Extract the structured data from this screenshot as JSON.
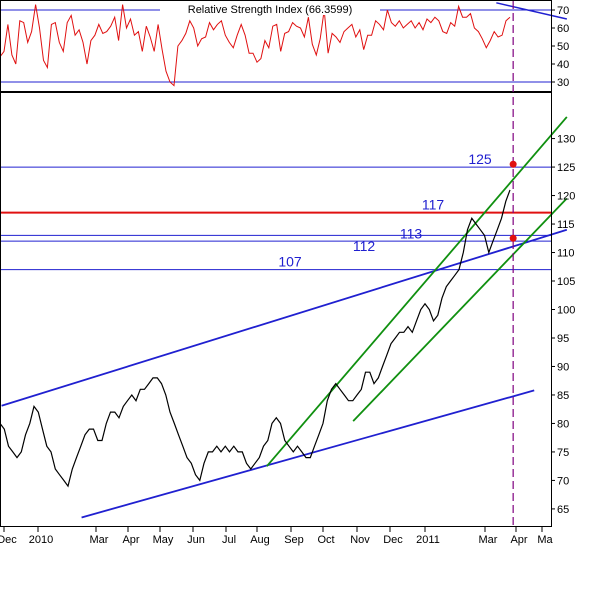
{
  "chart_data": [
    {
      "type": "line",
      "panel": "indicator",
      "title": "Relative Strength Index (66.3599)",
      "ylim": [
        25,
        75
      ],
      "y_ticks": [
        30,
        40,
        50,
        60,
        70
      ],
      "reference_lines": [
        30,
        70
      ],
      "series": [
        {
          "name": "",
          "color": "#e01010",
          "values": [
            44,
            47,
            62,
            45,
            40,
            64,
            63,
            52,
            58,
            73,
            60,
            42,
            38,
            62,
            63,
            52,
            47,
            63,
            67,
            56,
            59,
            52,
            40,
            53,
            56,
            62,
            57,
            58,
            61,
            66,
            53,
            73,
            60,
            65,
            56,
            58,
            47,
            61,
            55,
            47,
            62,
            48,
            36,
            30,
            28,
            50,
            53,
            57,
            64,
            60,
            50,
            54,
            55,
            63,
            59,
            62,
            64,
            56,
            52,
            49,
            56,
            62,
            56,
            46,
            46,
            41,
            43,
            53,
            49,
            61,
            62,
            47,
            57,
            58,
            63,
            61,
            60,
            55,
            66,
            51,
            45,
            54,
            70,
            46,
            57,
            55,
            52,
            58,
            60,
            62,
            55,
            59,
            48,
            56,
            56,
            64,
            62,
            59,
            70,
            63,
            61,
            64,
            60,
            62,
            64,
            60,
            63,
            59,
            65,
            63,
            66,
            64,
            58,
            57,
            63,
            61,
            72,
            66,
            66,
            68,
            60,
            58,
            54,
            49,
            53,
            58,
            55,
            56,
            64,
            66
          ]
        }
      ],
      "trendline": {
        "color": "#2020d0",
        "from": {
          "x": "2011-03-16",
          "y": 74
        },
        "to": {
          "x": "2011-05-22",
          "y": 65
        }
      },
      "legend": "none"
    },
    {
      "type": "line",
      "panel": "price",
      "x_ticks": [
        "Dec",
        "2010",
        "Mar",
        "Apr",
        "May",
        "Jun",
        "Jul",
        "Aug",
        "Sep",
        "Oct",
        "Nov",
        "Dec",
        "2011",
        "Mar",
        "Apr",
        "Ma"
      ],
      "ylim": [
        62,
        138
      ],
      "y_ticks": [
        65,
        70,
        75,
        80,
        85,
        90,
        95,
        100,
        105,
        110,
        115,
        120,
        125,
        130
      ],
      "grid": false,
      "series": [
        {
          "name": "",
          "color": "#000000",
          "values": [
            80,
            79,
            76,
            75,
            74,
            75,
            78,
            80,
            83,
            82,
            79,
            76,
            75,
            72,
            71,
            70,
            69,
            72,
            74,
            76,
            78,
            79,
            79,
            77,
            77,
            80,
            82,
            82,
            81,
            83,
            84,
            85,
            84,
            86,
            86,
            87,
            88,
            88,
            87,
            85,
            82,
            80,
            78,
            76,
            74,
            73,
            71,
            70,
            73,
            75,
            75,
            76,
            75,
            76,
            75,
            76,
            75,
            75,
            73,
            72,
            73,
            74,
            76,
            77,
            80,
            81,
            80,
            77,
            76,
            75,
            76,
            75,
            74,
            74,
            76,
            78,
            80,
            84,
            86,
            87,
            86,
            85,
            84,
            84,
            85,
            86,
            89,
            89,
            87,
            88,
            90,
            92,
            94,
            95,
            96,
            96,
            97,
            96,
            98,
            100,
            101,
            100,
            98,
            99,
            102,
            104,
            105,
            106,
            107,
            110,
            114,
            116,
            115,
            114,
            113,
            110,
            112,
            114,
            116,
            119,
            121
          ]
        }
      ],
      "horizontal_lines": [
        {
          "value": 125,
          "label": "125",
          "color": "#2020d0"
        },
        {
          "value": 117,
          "label": "117",
          "color": "#e01010"
        },
        {
          "value": 113,
          "label": "113",
          "color": "#2020d0"
        },
        {
          "value": 112,
          "label": "112",
          "color": "#2020d0"
        },
        {
          "value": 107,
          "label": "107",
          "color": "#2020d0"
        }
      ],
      "trendlines": [
        {
          "color": "#2020d0",
          "from": {
            "x": "2009-12-01",
            "y": 83.1
          },
          "to": {
            "x": "2011-05-22",
            "y": 114
          }
        },
        {
          "color": "#2020d0",
          "from": {
            "x": "2010-02-15",
            "y": 63.5
          },
          "to": {
            "x": "2011-04-21",
            "y": 85.8
          }
        },
        {
          "color": "#109010",
          "from": {
            "x": "2010-08-10",
            "y": 72.5
          },
          "to": {
            "x": "2011-05-22",
            "y": 133.8
          }
        },
        {
          "color": "#109010",
          "from": {
            "x": "2010-10-31",
            "y": 80.4
          },
          "to": {
            "x": "2011-05-22",
            "y": 119.5
          }
        }
      ],
      "markers": [
        {
          "x": "2011-04-01",
          "y": 125.5,
          "color": "#e01010"
        },
        {
          "x": "2011-04-01",
          "y": 112.5,
          "color": "#e01010"
        }
      ],
      "vertical_line": {
        "x": "2011-04-01",
        "color": "#800080",
        "style": "dashed"
      },
      "legend": "none"
    }
  ]
}
